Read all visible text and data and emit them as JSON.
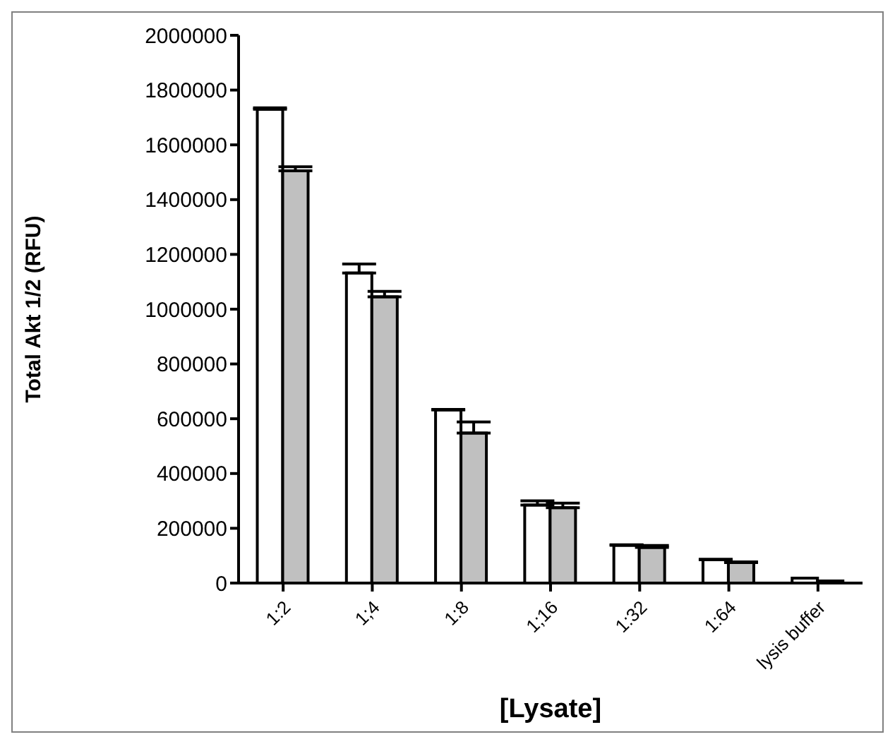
{
  "chart_data": {
    "type": "bar",
    "xlabel": "[Lysate]",
    "ylabel": "Total Akt 1/2 (RFU)",
    "categories": [
      "1:2",
      "1;4",
      "1:8",
      "1;16",
      "1:32",
      "1:64",
      "lysis buffer"
    ],
    "series": [
      {
        "color": "#ffffff",
        "values": [
          1730000,
          1132000,
          632000,
          285000,
          138000,
          85000,
          18000
        ],
        "errors": [
          [
            1730000,
            1735000
          ],
          [
            1132000,
            1165000
          ],
          [
            632000,
            634000
          ],
          [
            285000,
            300000
          ],
          [
            138000,
            140000
          ],
          [
            85000,
            87000
          ],
          null
        ]
      },
      {
        "color": "#c0c0c0",
        "values": [
          1505000,
          1045000,
          548000,
          275000,
          130000,
          75000,
          8000
        ],
        "errors": [
          [
            1505000,
            1520000
          ],
          [
            1045000,
            1065000
          ],
          [
            548000,
            588000
          ],
          [
            275000,
            292000
          ],
          [
            130000,
            137000
          ],
          [
            75000,
            77000
          ],
          null
        ]
      }
    ],
    "ylim": [
      0,
      2000000
    ],
    "yticks": [
      0,
      200000,
      400000,
      600000,
      800000,
      1000000,
      1200000,
      1400000,
      1600000,
      1800000,
      2000000
    ],
    "grid": false,
    "legend": false
  }
}
